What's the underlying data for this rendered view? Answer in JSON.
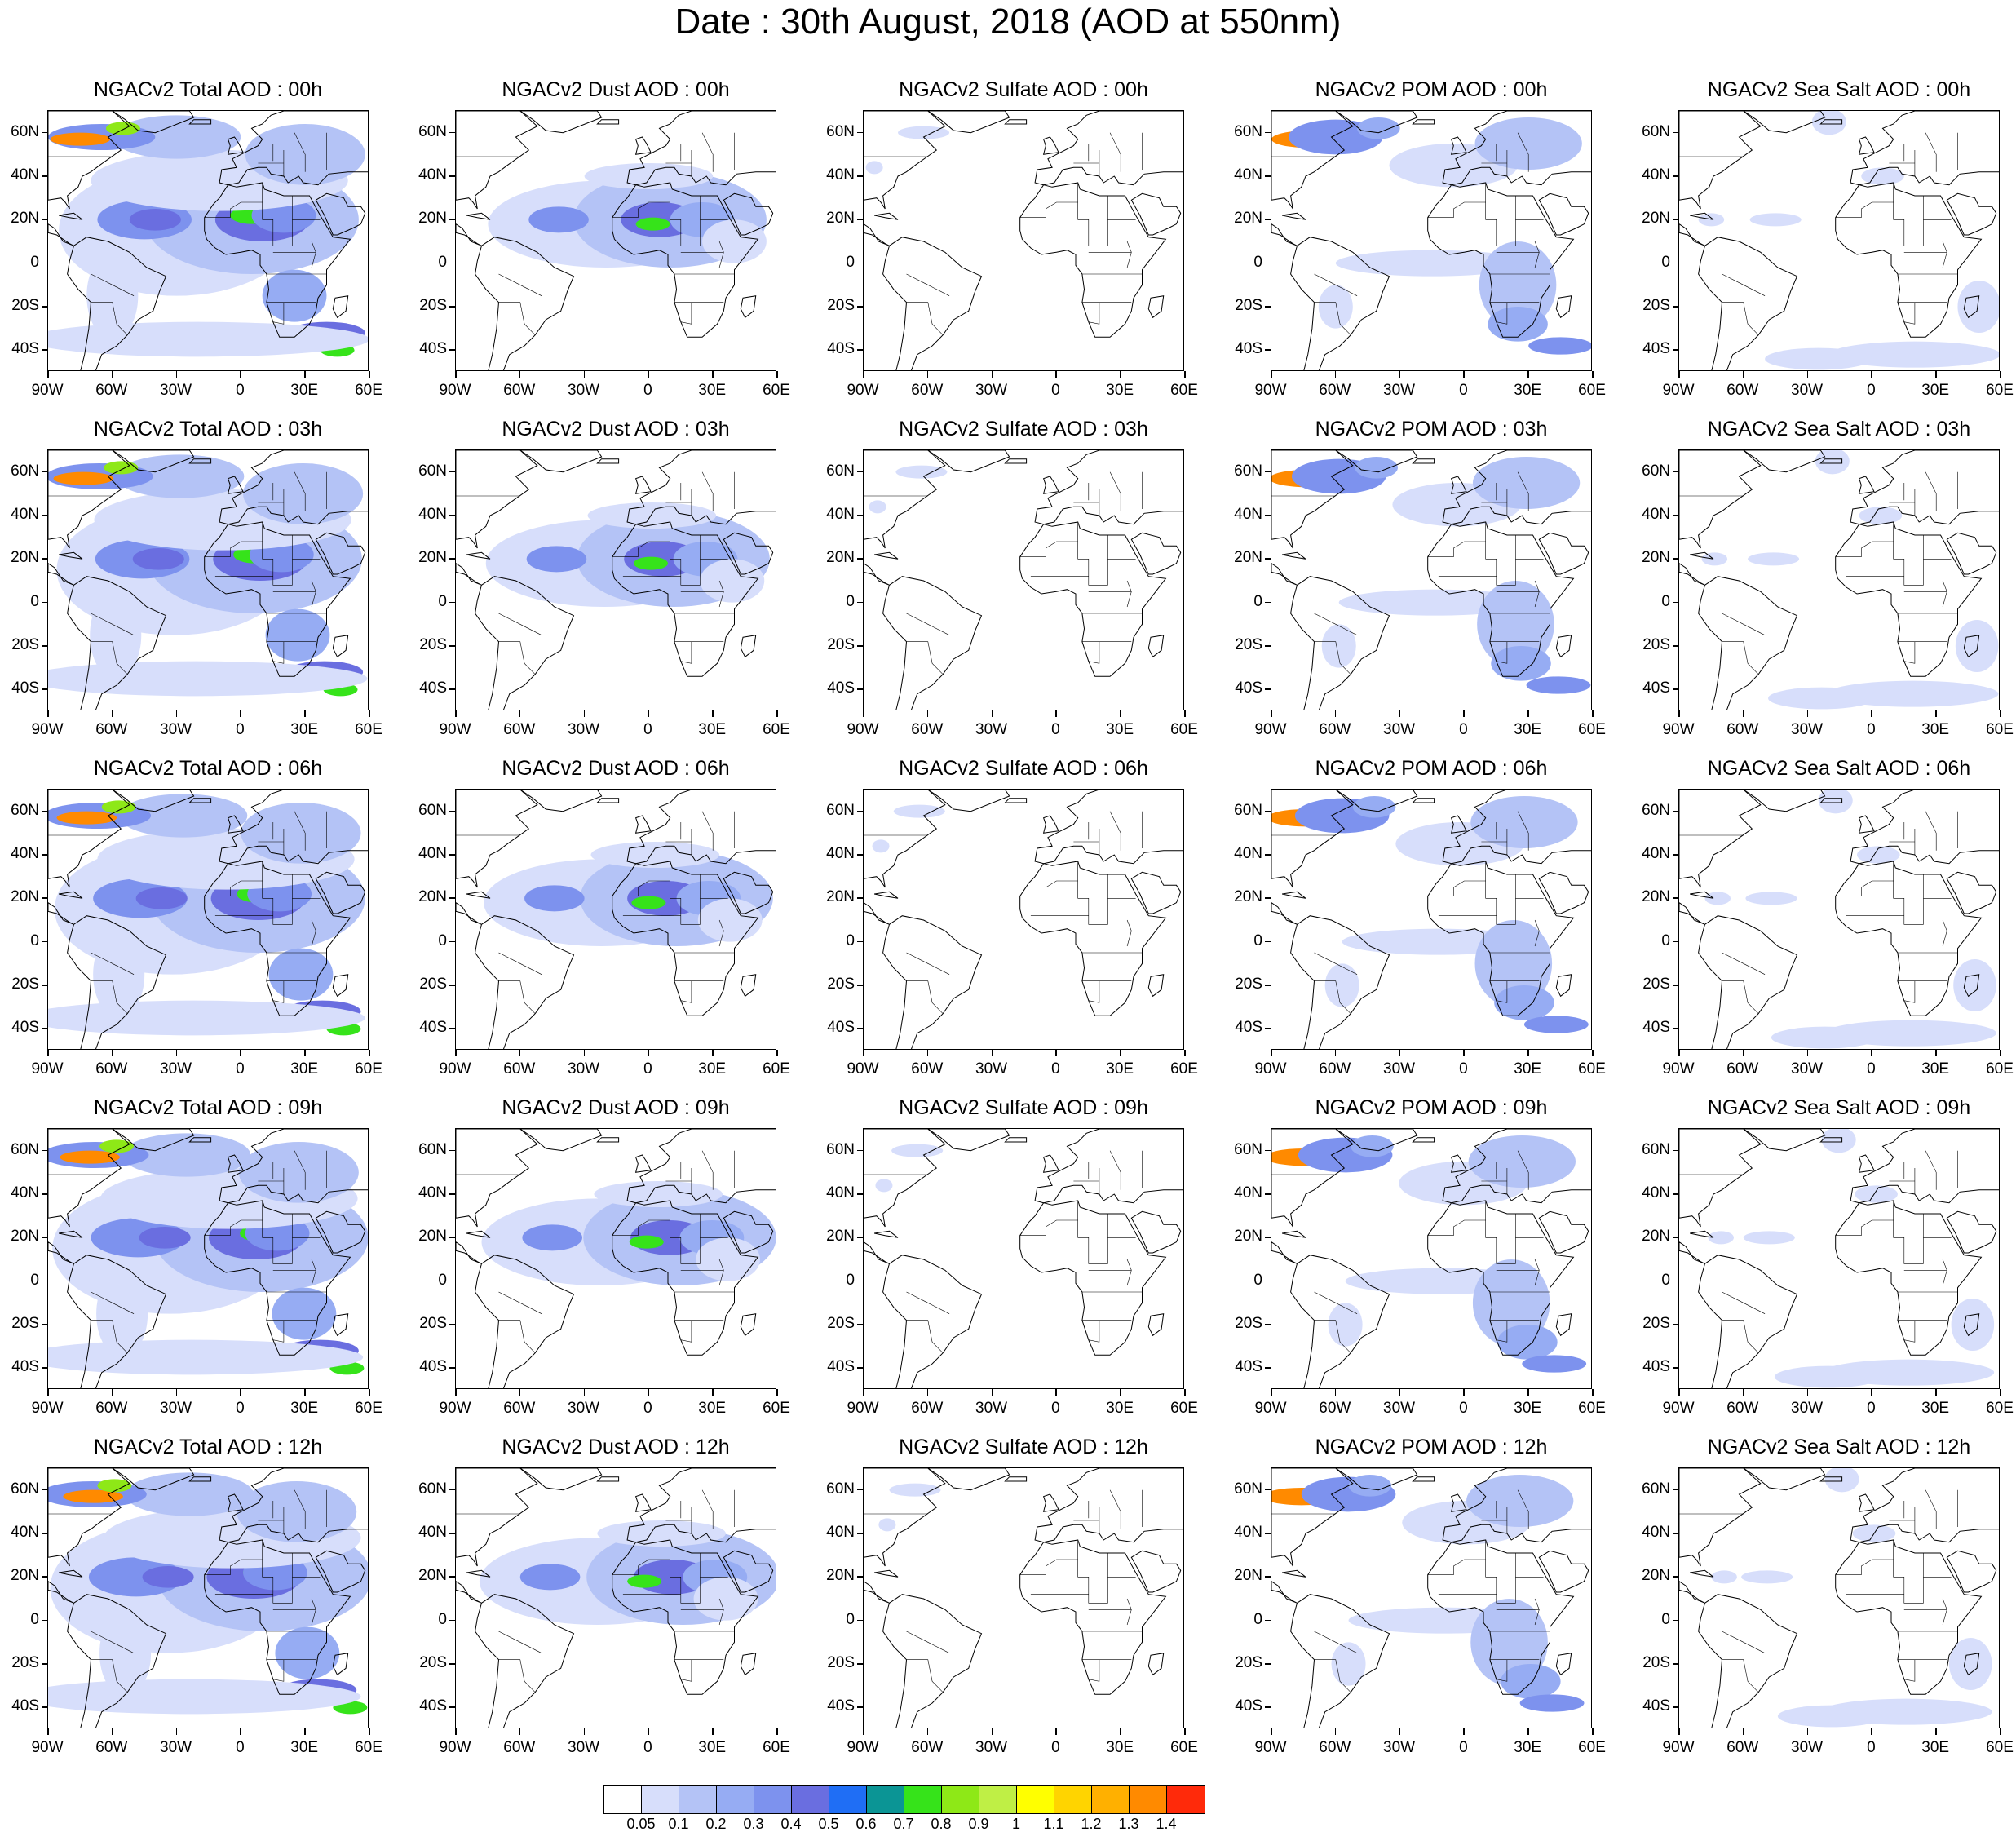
{
  "title": "Date : 30th August, 2018 (AOD at 550nm)",
  "panels": [
    [
      "NGACv2 Total AOD : 00h",
      "NGACv2 Dust AOD : 00h",
      "NGACv2 Sulfate AOD : 00h",
      "NGACv2 POM AOD : 00h",
      "NGACv2 Sea Salt AOD : 00h"
    ],
    [
      "NGACv2 Total AOD : 03h",
      "NGACv2 Dust AOD : 03h",
      "NGACv2 Sulfate AOD : 03h",
      "NGACv2 POM AOD : 03h",
      "NGACv2 Sea Salt AOD : 03h"
    ],
    [
      "NGACv2 Total AOD : 06h",
      "NGACv2 Dust AOD : 06h",
      "NGACv2 Sulfate AOD : 06h",
      "NGACv2 POM AOD : 06h",
      "NGACv2 Sea Salt AOD : 06h"
    ],
    [
      "NGACv2 Total AOD : 09h",
      "NGACv2 Dust AOD : 09h",
      "NGACv2 Sulfate AOD : 09h",
      "NGACv2 POM AOD : 09h",
      "NGACv2 Sea Salt  AOD : 09h"
    ],
    [
      "NGACv2 Total AOD  : 12h",
      "NGACv2 Dust AOD : 12h",
      "NGACv2 Sulfate AOD : 12h",
      "NGACv2 POM  AOD : 12h",
      "NGACv2 Sea Salt  AOD : 12h"
    ]
  ],
  "lat_labels": [
    "60N",
    "40N",
    "20N",
    "0",
    "20S",
    "40S"
  ],
  "lon_labels": [
    "90W",
    "60W",
    "30W",
    "0",
    "30E",
    "60E"
  ],
  "colorbar": {
    "colors": [
      "#ffffff",
      "#d7defb",
      "#b4c3f6",
      "#96acf3",
      "#7d92ee",
      "#6a6ee0",
      "#1f6ef5",
      "#0b9595",
      "#36e31a",
      "#8ee817",
      "#bfef45",
      "#ffff00",
      "#ffd400",
      "#ffb000",
      "#ff8a00",
      "#ff2a0a"
    ],
    "labels": [
      "0.05",
      "0.1",
      "0.2",
      "0.3",
      "0.4",
      "0.5",
      "0.6",
      "0.7",
      "0.8",
      "0.9",
      "1",
      "1.1",
      "1.2",
      "1.3",
      "1.4"
    ]
  }
}
